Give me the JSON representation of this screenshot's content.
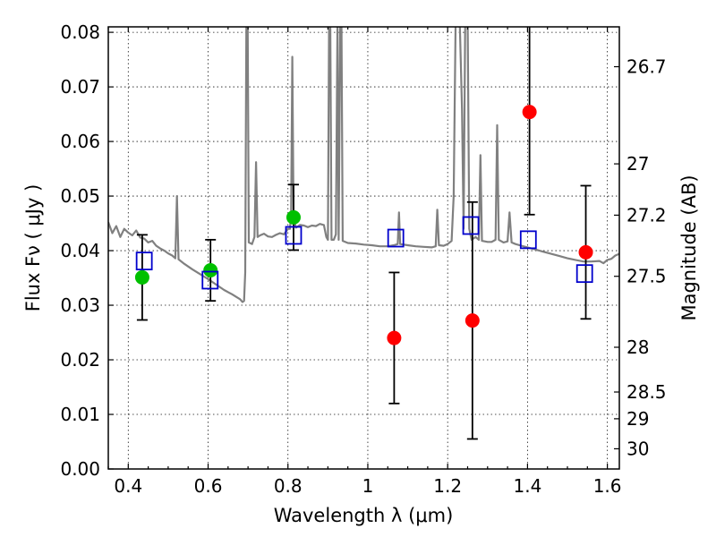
{
  "chart_data": {
    "type": "scatter",
    "title": "",
    "xlabel": "Wavelength  λ (μm)",
    "ylabel": "Flux  Fν  ( μJy )",
    "ylabel_right": "Magnitude (AB)",
    "xlim": [
      0.35,
      1.63
    ],
    "ylim": [
      0.0,
      0.081
    ],
    "grid": true,
    "x_ticks": [
      0.4,
      0.6,
      0.8,
      1.0,
      1.2,
      1.4,
      1.6
    ],
    "x_tick_labels": [
      "0.4",
      "0.6",
      "0.8",
      "1",
      "1.2",
      "1.4",
      "1.6"
    ],
    "y_ticks": [
      0.0,
      0.01,
      0.02,
      0.03,
      0.04,
      0.05,
      0.06,
      0.07,
      0.08
    ],
    "y_tick_labels": [
      "0.00",
      "0.01",
      "0.02",
      "0.03",
      "0.04",
      "0.05",
      "0.06",
      "0.07",
      "0.08"
    ],
    "right_ticks": [
      {
        "label": "26.7",
        "flux": 0.0737
      },
      {
        "label": "27",
        "flux": 0.0559
      },
      {
        "label": "27.2",
        "flux": 0.0465
      },
      {
        "label": "27.5",
        "flux": 0.0353
      },
      {
        "label": "28",
        "flux": 0.0223
      },
      {
        "label": "28.5",
        "flux": 0.0141
      },
      {
        "label": "29",
        "flux": 0.0092
      },
      {
        "label": "30",
        "flux": 0.0037
      }
    ],
    "series": [
      {
        "marker": "green-circle",
        "points": [
          {
            "x": 0.435,
            "y": 0.0351,
            "err": 0.0078
          },
          {
            "x": 0.606,
            "y": 0.0364,
            "err": 0.0056
          },
          {
            "x": 0.814,
            "y": 0.0461,
            "err": 0.006
          }
        ]
      },
      {
        "marker": "red-circle",
        "points": [
          {
            "x": 1.066,
            "y": 0.024,
            "err": 0.012
          },
          {
            "x": 1.262,
            "y": 0.0272,
            "err": 0.0217
          },
          {
            "x": 1.405,
            "y": 0.0654,
            "err": 0.0188
          },
          {
            "x": 1.546,
            "y": 0.0397,
            "err": 0.0122
          }
        ]
      },
      {
        "marker": "blue-open-square",
        "points": [
          {
            "x": 0.44,
            "y": 0.0381
          },
          {
            "x": 0.605,
            "y": 0.0346
          },
          {
            "x": 0.814,
            "y": 0.0428
          },
          {
            "x": 1.07,
            "y": 0.0423
          },
          {
            "x": 1.258,
            "y": 0.0446
          },
          {
            "x": 1.402,
            "y": 0.042
          },
          {
            "x": 1.543,
            "y": 0.0358
          }
        ]
      }
    ],
    "spectrum": [
      [
        0.35,
        0.0452
      ],
      [
        0.36,
        0.0432
      ],
      [
        0.37,
        0.0445
      ],
      [
        0.38,
        0.0425
      ],
      [
        0.39,
        0.044
      ],
      [
        0.4,
        0.0433
      ],
      [
        0.41,
        0.0428
      ],
      [
        0.42,
        0.0437
      ],
      [
        0.43,
        0.0424
      ],
      [
        0.44,
        0.0422
      ],
      [
        0.45,
        0.0415
      ],
      [
        0.46,
        0.0418
      ],
      [
        0.47,
        0.0409
      ],
      [
        0.48,
        0.0404
      ],
      [
        0.49,
        0.04
      ],
      [
        0.5,
        0.0395
      ],
      [
        0.51,
        0.0391
      ],
      [
        0.518,
        0.0386
      ],
      [
        0.522,
        0.05
      ],
      [
        0.526,
        0.0384
      ],
      [
        0.54,
        0.0376
      ],
      [
        0.56,
        0.0366
      ],
      [
        0.58,
        0.0357
      ],
      [
        0.6,
        0.0348
      ],
      [
        0.62,
        0.0338
      ],
      [
        0.64,
        0.0328
      ],
      [
        0.66,
        0.032
      ],
      [
        0.68,
        0.0311
      ],
      [
        0.686,
        0.0306
      ],
      [
        0.69,
        0.0308
      ],
      [
        0.693,
        0.036
      ],
      [
        0.696,
        0.0825
      ],
      [
        0.699,
        0.0825
      ],
      [
        0.702,
        0.0415
      ],
      [
        0.71,
        0.0412
      ],
      [
        0.716,
        0.0425
      ],
      [
        0.72,
        0.0562
      ],
      [
        0.724,
        0.0425
      ],
      [
        0.73,
        0.0428
      ],
      [
        0.74,
        0.0431
      ],
      [
        0.75,
        0.0426
      ],
      [
        0.76,
        0.0425
      ],
      [
        0.77,
        0.0429
      ],
      [
        0.78,
        0.0432
      ],
      [
        0.79,
        0.043
      ],
      [
        0.8,
        0.044
      ],
      [
        0.805,
        0.044
      ],
      [
        0.808,
        0.047
      ],
      [
        0.811,
        0.0755
      ],
      [
        0.814,
        0.046
      ],
      [
        0.82,
        0.0442
      ],
      [
        0.83,
        0.0447
      ],
      [
        0.84,
        0.0446
      ],
      [
        0.85,
        0.0443
      ],
      [
        0.86,
        0.0446
      ],
      [
        0.87,
        0.0445
      ],
      [
        0.88,
        0.0449
      ],
      [
        0.89,
        0.0447
      ],
      [
        0.896,
        0.0425
      ],
      [
        0.9,
        0.042
      ],
      [
        0.903,
        0.0825
      ],
      [
        0.906,
        0.0825
      ],
      [
        0.909,
        0.042
      ],
      [
        0.915,
        0.042
      ],
      [
        0.92,
        0.043
      ],
      [
        0.924,
        0.0825
      ],
      [
        0.927,
        0.042
      ],
      [
        0.931,
        0.0825
      ],
      [
        0.934,
        0.0825
      ],
      [
        0.937,
        0.0418
      ],
      [
        0.95,
        0.0414
      ],
      [
        0.97,
        0.0413
      ],
      [
        0.99,
        0.0411
      ],
      [
        1.01,
        0.041
      ],
      [
        1.03,
        0.0408
      ],
      [
        1.05,
        0.0408
      ],
      [
        1.065,
        0.041
      ],
      [
        1.075,
        0.0412
      ],
      [
        1.078,
        0.047
      ],
      [
        1.081,
        0.0412
      ],
      [
        1.1,
        0.041
      ],
      [
        1.12,
        0.0408
      ],
      [
        1.14,
        0.0407
      ],
      [
        1.16,
        0.0406
      ],
      [
        1.17,
        0.0408
      ],
      [
        1.174,
        0.0475
      ],
      [
        1.178,
        0.041
      ],
      [
        1.19,
        0.0409
      ],
      [
        1.2,
        0.0412
      ],
      [
        1.21,
        0.0418
      ],
      [
        1.215,
        0.05
      ],
      [
        1.22,
        0.0825
      ],
      [
        1.23,
        0.0825
      ],
      [
        1.236,
        0.066
      ],
      [
        1.24,
        0.044
      ],
      [
        1.244,
        0.0825
      ],
      [
        1.25,
        0.0825
      ],
      [
        1.254,
        0.044
      ],
      [
        1.26,
        0.042
      ],
      [
        1.27,
        0.0425
      ],
      [
        1.278,
        0.042
      ],
      [
        1.282,
        0.0575
      ],
      [
        1.286,
        0.0418
      ],
      [
        1.3,
        0.0416
      ],
      [
        1.31,
        0.0416
      ],
      [
        1.32,
        0.042
      ],
      [
        1.324,
        0.063
      ],
      [
        1.328,
        0.042
      ],
      [
        1.34,
        0.0415
      ],
      [
        1.35,
        0.0417
      ],
      [
        1.355,
        0.047
      ],
      [
        1.36,
        0.0415
      ],
      [
        1.37,
        0.0412
      ],
      [
        1.38,
        0.041
      ],
      [
        1.4,
        0.0406
      ],
      [
        1.42,
        0.0402
      ],
      [
        1.44,
        0.0398
      ],
      [
        1.46,
        0.0394
      ],
      [
        1.48,
        0.039
      ],
      [
        1.5,
        0.0386
      ],
      [
        1.52,
        0.0383
      ],
      [
        1.54,
        0.038
      ],
      [
        1.56,
        0.038
      ],
      [
        1.58,
        0.0381
      ],
      [
        1.59,
        0.0377
      ],
      [
        1.6,
        0.0383
      ],
      [
        1.61,
        0.0385
      ],
      [
        1.62,
        0.0391
      ],
      [
        1.63,
        0.0394
      ]
    ]
  }
}
